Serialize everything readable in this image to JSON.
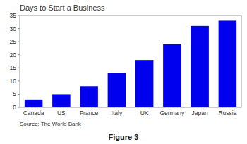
{
  "chart_data": {
    "type": "bar",
    "title": "Days to Start a Business",
    "categories": [
      "Canada",
      "US",
      "France",
      "Italy",
      "UK",
      "Germany",
      "Japan",
      "Russia"
    ],
    "values": [
      3,
      5,
      8,
      13,
      18,
      24,
      31,
      33
    ],
    "color": "#0000EE",
    "ylim": [
      0,
      35
    ],
    "yticks": [
      0,
      5,
      10,
      15,
      20,
      25,
      30,
      35
    ],
    "grid": false,
    "annotations": [
      "Source: The World Bank",
      "Figure 3"
    ]
  }
}
